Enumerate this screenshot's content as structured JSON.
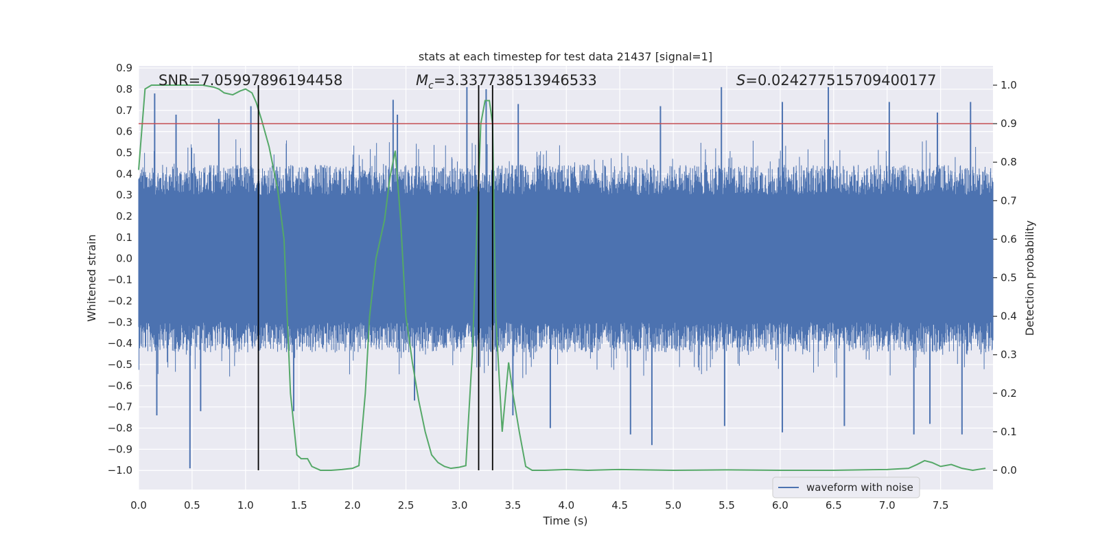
{
  "chart_data": {
    "type": "line",
    "title": "stats at each timestep for test data 21437 [signal=1]",
    "xlabel": "Time (s)",
    "ylabel": "Whitened strain",
    "y2label": "Detection probability",
    "xlim": [
      0.0,
      7.99
    ],
    "ylim": [
      -1.09,
      0.91
    ],
    "y2lim": [
      -0.05,
      1.05
    ],
    "x_ticks": [
      0.0,
      0.5,
      1.0,
      1.5,
      2.0,
      2.5,
      3.0,
      3.5,
      4.0,
      4.5,
      5.0,
      5.5,
      6.0,
      6.5,
      7.0,
      7.5
    ],
    "x_tick_labels": [
      "0.0",
      "0.5",
      "1.0",
      "1.5",
      "2.0",
      "2.5",
      "3.0",
      "3.5",
      "4.0",
      "4.5",
      "5.0",
      "5.5",
      "6.0",
      "6.5",
      "7.0",
      "7.5"
    ],
    "y_ticks": [
      0.9,
      0.8,
      0.7,
      0.6,
      0.5,
      0.4,
      0.3,
      0.2,
      0.1,
      0.0,
      -0.1,
      -0.2,
      -0.3,
      -0.4,
      -0.5,
      -0.6,
      -0.7,
      -0.8,
      -0.9,
      -1.0
    ],
    "y_tick_labels": [
      "0.9",
      "0.8",
      "0.7",
      "0.6",
      "0.5",
      "0.4",
      "0.3",
      "0.2",
      "0.1",
      "0.0",
      "−0.1",
      "−0.2",
      "−0.3",
      "−0.4",
      "−0.5",
      "−0.6",
      "−0.7",
      "−0.8",
      "−0.9",
      "−1.0"
    ],
    "y2_ticks": [
      1.0,
      0.9,
      0.8,
      0.7,
      0.6,
      0.5,
      0.4,
      0.3,
      0.2,
      0.1,
      0.0
    ],
    "y2_tick_labels": [
      "1.0",
      "0.9",
      "0.8",
      "0.7",
      "0.6",
      "0.5",
      "0.4",
      "0.3",
      "0.2",
      "0.1",
      "0.0"
    ],
    "grid": true,
    "legend": {
      "position": "lower-right",
      "entries": [
        "waveform with noise"
      ]
    },
    "annotations": {
      "snr": "SNR=7.05997896194458",
      "mc_symbol": "M",
      "mc_subscript": "c",
      "mc_value": "=3.337738513946533",
      "s_symbol": "S",
      "s_value": "=0.024277515709400177"
    },
    "threshold_y2": 0.9,
    "vertical_lines_x": [
      1.12,
      3.18,
      3.31
    ],
    "waveform": {
      "noise_band": [
        -0.27,
        0.27
      ],
      "envelope_typical": [
        -0.45,
        0.45
      ],
      "peaks_up": [
        [
          0.15,
          0.78
        ],
        [
          0.35,
          0.68
        ],
        [
          0.75,
          0.66
        ],
        [
          1.05,
          0.72
        ],
        [
          2.38,
          0.75
        ],
        [
          2.42,
          0.68
        ],
        [
          3.07,
          0.81
        ],
        [
          3.25,
          0.8
        ],
        [
          3.55,
          0.73
        ],
        [
          4.88,
          0.72
        ],
        [
          5.45,
          0.81
        ],
        [
          6.02,
          0.74
        ],
        [
          6.45,
          0.81
        ],
        [
          7.02,
          0.74
        ],
        [
          7.47,
          0.69
        ],
        [
          7.78,
          0.74
        ]
      ],
      "peaks_down": [
        [
          0.17,
          -0.74
        ],
        [
          0.48,
          -0.99
        ],
        [
          0.58,
          -0.72
        ],
        [
          1.45,
          -0.72
        ],
        [
          2.58,
          -0.67
        ],
        [
          3.5,
          -0.74
        ],
        [
          3.85,
          -0.8
        ],
        [
          4.6,
          -0.83
        ],
        [
          4.8,
          -0.88
        ],
        [
          5.48,
          -0.79
        ],
        [
          6.02,
          -0.82
        ],
        [
          6.6,
          -0.79
        ],
        [
          7.25,
          -0.83
        ],
        [
          7.4,
          -0.78
        ],
        [
          7.7,
          -0.83
        ]
      ],
      "colors": {
        "line": "#4c72b0"
      }
    },
    "probability": {
      "x": [
        0.0,
        0.06,
        0.12,
        0.2,
        0.4,
        0.6,
        0.7,
        0.75,
        0.8,
        0.88,
        0.95,
        1.0,
        1.06,
        1.1,
        1.15,
        1.22,
        1.3,
        1.36,
        1.42,
        1.48,
        1.52,
        1.58,
        1.62,
        1.7,
        1.8,
        1.9,
        2.0,
        2.06,
        2.12,
        2.16,
        2.22,
        2.3,
        2.35,
        2.4,
        2.45,
        2.5,
        2.56,
        2.62,
        2.68,
        2.74,
        2.8,
        2.86,
        2.92,
        3.0,
        3.06,
        3.12,
        3.16,
        3.2,
        3.24,
        3.28,
        3.31,
        3.34,
        3.4,
        3.46,
        3.5,
        3.56,
        3.62,
        3.68,
        3.8,
        4.0,
        4.2,
        4.5,
        5.0,
        5.5,
        6.0,
        6.5,
        7.0,
        7.2,
        7.28,
        7.35,
        7.42,
        7.5,
        7.6,
        7.7,
        7.8,
        7.92
      ],
      "y": [
        0.78,
        0.99,
        1.0,
        1.0,
        1.0,
        1.0,
        0.995,
        0.99,
        0.98,
        0.975,
        0.985,
        0.99,
        0.98,
        0.955,
        0.91,
        0.84,
        0.73,
        0.6,
        0.2,
        0.04,
        0.03,
        0.03,
        0.01,
        0.0,
        0.0,
        0.002,
        0.005,
        0.012,
        0.2,
        0.4,
        0.55,
        0.65,
        0.76,
        0.83,
        0.65,
        0.4,
        0.28,
        0.18,
        0.1,
        0.04,
        0.02,
        0.01,
        0.005,
        0.008,
        0.012,
        0.3,
        0.6,
        0.9,
        0.96,
        0.96,
        0.9,
        0.4,
        0.1,
        0.28,
        0.2,
        0.1,
        0.01,
        0.0,
        0.0,
        0.002,
        0.0,
        0.002,
        0.0,
        0.001,
        0.0,
        0.0,
        0.002,
        0.005,
        0.015,
        0.025,
        0.02,
        0.01,
        0.015,
        0.005,
        0.0,
        0.005
      ],
      "colors": {
        "line": "#55a868"
      }
    },
    "colors": {
      "background": "#eaeaf2",
      "grid": "#ffffff",
      "threshold": "#c44e52",
      "vline": "#000000"
    }
  }
}
